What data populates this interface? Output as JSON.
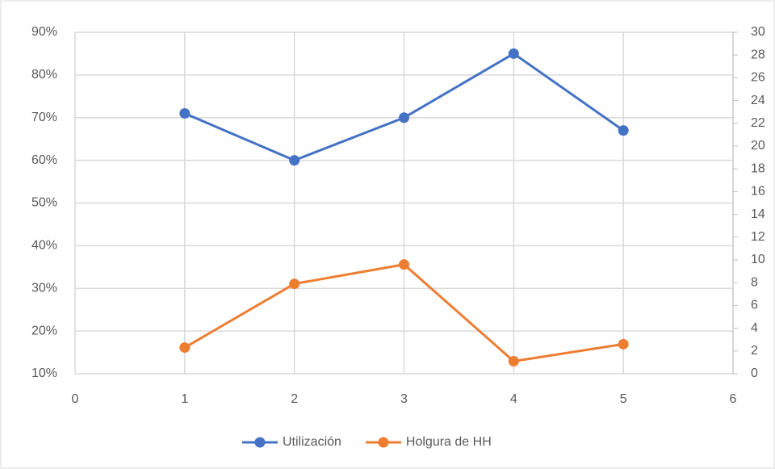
{
  "chart_data": {
    "type": "line",
    "x": [
      1,
      2,
      3,
      4,
      5
    ],
    "xlim": [
      0,
      6
    ],
    "xticks": [
      0,
      1,
      2,
      3,
      4,
      5,
      6
    ],
    "ylim": [
      10,
      90
    ],
    "yticks": [
      {
        "value": 10,
        "label": "10%"
      },
      {
        "value": 20,
        "label": "20%"
      },
      {
        "value": 30,
        "label": "30%"
      },
      {
        "value": 40,
        "label": "40%"
      },
      {
        "value": 50,
        "label": "50%"
      },
      {
        "value": 60,
        "label": "60%"
      },
      {
        "value": 70,
        "label": "70%"
      },
      {
        "value": 80,
        "label": "80%"
      },
      {
        "value": 90,
        "label": "90%"
      }
    ],
    "y2lim": [
      0,
      30
    ],
    "y2ticks": [
      0,
      2,
      4,
      6,
      8,
      10,
      12,
      14,
      16,
      18,
      20,
      22,
      24,
      26,
      28,
      30
    ],
    "grid": true,
    "legend": "bottom",
    "series": [
      {
        "name": "Utilización",
        "color": "#4472c4",
        "values": [
          71,
          60,
          70,
          85,
          67
        ]
      },
      {
        "name": "Holgura de HH",
        "color": "#ed7d31",
        "axis": "y2",
        "values": [
          2.3,
          7.9,
          9.6,
          1.1,
          2.6
        ]
      }
    ]
  }
}
